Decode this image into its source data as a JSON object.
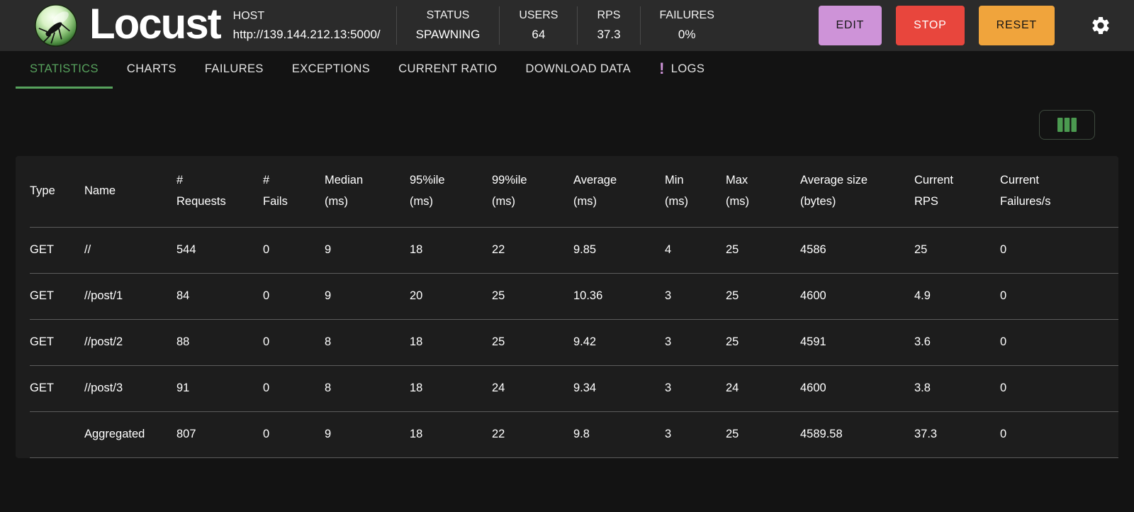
{
  "header": {
    "app_title": "Locust",
    "host_label": "HOST",
    "host_url": "http://139.144.212.13:5000/",
    "stats": [
      {
        "label": "STATUS",
        "value": "SPAWNING"
      },
      {
        "label": "USERS",
        "value": "64"
      },
      {
        "label": "RPS",
        "value": "37.3"
      },
      {
        "label": "FAILURES",
        "value": "0%"
      }
    ],
    "buttons": {
      "edit": "EDIT",
      "stop": "STOP",
      "reset": "RESET"
    },
    "icons": {
      "logo": "locust-logo",
      "settings": "gear-icon",
      "columns": "view-columns-icon",
      "logs_alert": "exclamation-icon"
    }
  },
  "nav": {
    "logs_alert_glyph": "!",
    "tabs": [
      {
        "label": "STATISTICS",
        "active": true
      },
      {
        "label": "CHARTS"
      },
      {
        "label": "FAILURES"
      },
      {
        "label": "EXCEPTIONS"
      },
      {
        "label": "CURRENT RATIO"
      },
      {
        "label": "DOWNLOAD DATA"
      },
      {
        "label": "LOGS",
        "alert": true
      }
    ]
  },
  "table": {
    "columns": [
      {
        "key": "type",
        "lines": [
          "Type"
        ]
      },
      {
        "key": "name",
        "lines": [
          "Name"
        ]
      },
      {
        "key": "requests",
        "lines": [
          "#",
          "Requests"
        ]
      },
      {
        "key": "fails",
        "lines": [
          "#",
          "Fails"
        ]
      },
      {
        "key": "median",
        "lines": [
          "Median",
          "(ms)"
        ]
      },
      {
        "key": "p95",
        "lines": [
          "95%ile",
          "(ms)"
        ]
      },
      {
        "key": "p99",
        "lines": [
          "99%ile",
          "(ms)"
        ]
      },
      {
        "key": "average",
        "lines": [
          "Average",
          "(ms)"
        ]
      },
      {
        "key": "min",
        "lines": [
          "Min",
          "(ms)"
        ]
      },
      {
        "key": "max",
        "lines": [
          "Max",
          "(ms)"
        ]
      },
      {
        "key": "avg-size",
        "lines": [
          "Average size",
          "(bytes)"
        ]
      },
      {
        "key": "current-rps",
        "lines": [
          "Current",
          "RPS"
        ]
      },
      {
        "key": "current-failures",
        "lines": [
          "Current",
          "Failures/s"
        ]
      }
    ],
    "rows": [
      {
        "cells": [
          "GET",
          "//",
          "544",
          "0",
          "9",
          "18",
          "22",
          "9.85",
          "4",
          "25",
          "4586",
          "25",
          "0"
        ]
      },
      {
        "cells": [
          "GET",
          "//post/1",
          "84",
          "0",
          "9",
          "20",
          "25",
          "10.36",
          "3",
          "25",
          "4600",
          "4.9",
          "0"
        ]
      },
      {
        "cells": [
          "GET",
          "//post/2",
          "88",
          "0",
          "8",
          "18",
          "25",
          "9.42",
          "3",
          "25",
          "4591",
          "3.6",
          "0"
        ]
      },
      {
        "cells": [
          "GET",
          "//post/3",
          "91",
          "0",
          "8",
          "18",
          "24",
          "9.34",
          "3",
          "24",
          "4600",
          "3.8",
          "0"
        ]
      },
      {
        "cells": [
          "",
          "Aggregated",
          "807",
          "0",
          "9",
          "18",
          "22",
          "9.8",
          "3",
          "25",
          "4589.58",
          "37.3",
          "0"
        ]
      }
    ]
  },
  "colors": {
    "page_bg": "#131313",
    "header_bg": "#2b2b2b",
    "panel_bg": "#1d1d1d",
    "accent_green": "#57a25d",
    "icon_green": "#4b9a50",
    "edit_purple": "#ce93d8",
    "stop_red": "#e8463d",
    "reset_orange": "#f0a43c",
    "logs_alert_purple": "#ce93d8",
    "divider_gray": "#4a4a4a",
    "row_border": "#5c5c5c"
  }
}
